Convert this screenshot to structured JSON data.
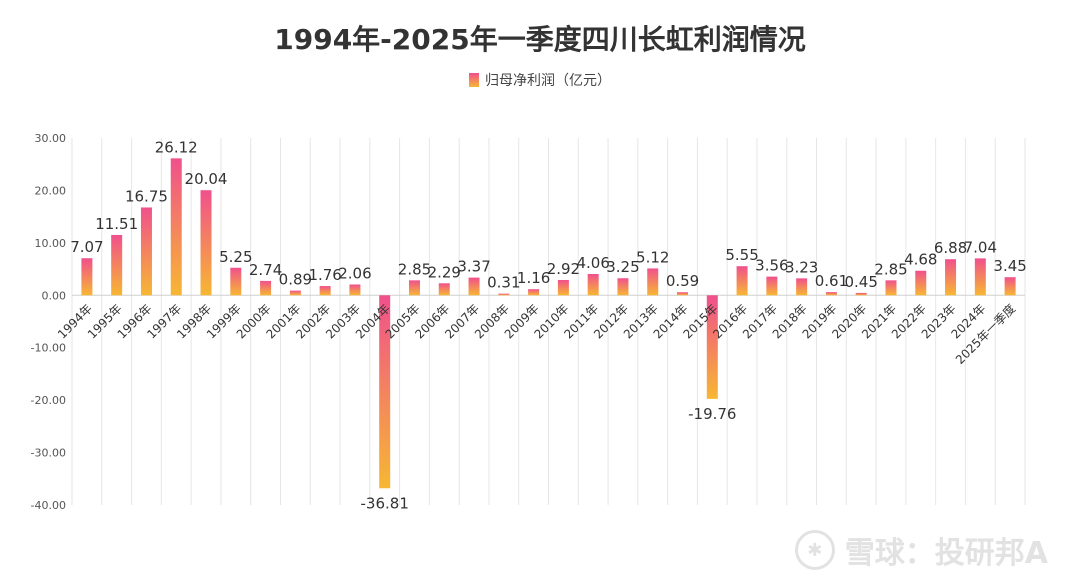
{
  "chart_data": {
    "type": "bar",
    "title": "1994年-2025年一季度四川长虹利润情况",
    "series": [
      {
        "name": "归母净利润（亿元）",
        "values": [
          7.07,
          11.51,
          16.75,
          26.12,
          20.04,
          5.25,
          2.74,
          0.89,
          1.76,
          2.06,
          -36.81,
          2.85,
          2.29,
          3.37,
          0.31,
          1.16,
          2.92,
          4.06,
          3.25,
          5.12,
          0.59,
          -19.76,
          5.55,
          3.56,
          3.23,
          0.61,
          0.45,
          2.85,
          4.68,
          6.88,
          7.04,
          3.45
        ]
      }
    ],
    "categories": [
      "1994年",
      "1995年",
      "1996年",
      "1997年",
      "1998年",
      "1999年",
      "2000年",
      "2001年",
      "2002年",
      "2003年",
      "2004年",
      "2005年",
      "2006年",
      "2007年",
      "2008年",
      "2009年",
      "2010年",
      "2011年",
      "2012年",
      "2013年",
      "2014年",
      "2015年",
      "2016年",
      "2017年",
      "2018年",
      "2019年",
      "2020年",
      "2021年",
      "2022年",
      "2023年",
      "2024年",
      "2025年一季度"
    ],
    "data_labels": [
      "7.07",
      "11.51",
      "16.75",
      "26.12",
      "20.04",
      "5.25",
      "2.74",
      "0.89",
      "1.76",
      "2.06",
      "-36.81",
      "2.85",
      "2.29",
      "3.37",
      "0.31",
      "1.16",
      "2.92",
      "4.06",
      "3.25",
      "5.12",
      "0.59",
      "-19.76",
      "5.55",
      "3.56",
      "3.23",
      "0.61",
      "0.45",
      "2.85",
      "4.68",
      "6.88",
      "7.04",
      "3.45"
    ],
    "ylim": [
      -40,
      30
    ],
    "yticks": [
      30,
      20,
      10,
      0,
      -10,
      -20,
      -30,
      -40
    ],
    "ytick_labels": [
      "30.00",
      "20.00",
      "10.00",
      "0.00",
      "-10.00",
      "-20.00",
      "-30.00",
      "-40.00"
    ],
    "grid": "vertical",
    "legend": "top-center",
    "colors": {
      "bar_top": "#f0508c",
      "bar_bottom": "#f7b733",
      "axis": "#999999",
      "grid": "#e6e6e6"
    }
  },
  "watermark": {
    "icon": "snowball-logo-icon",
    "text": "雪球：投研邦A"
  }
}
